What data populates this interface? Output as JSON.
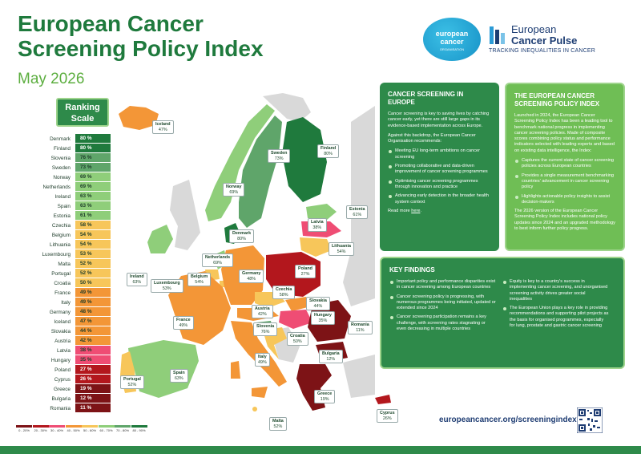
{
  "header": {
    "title": "European Cancer Screening Policy Index",
    "date": "May 2026"
  },
  "logos": {
    "ec_line1": "european",
    "ec_line2": "cancer",
    "ec_line3": "ORGANISATION",
    "pulse_line1": "European",
    "pulse_line2": "Cancer Pulse",
    "pulse_tagline": "TRACKING INEQUALITIES IN CANCER"
  },
  "scale": {
    "badge": "Ranking Scale",
    "rows": [
      {
        "name": "Denmark",
        "value": "80 %",
        "color": "#1f7a3d"
      },
      {
        "name": "Finland",
        "value": "80 %",
        "color": "#1f7a3d"
      },
      {
        "name": "Slovenia",
        "value": "76 %",
        "color": "#5fa56a"
      },
      {
        "name": "Sweden",
        "value": "73 %",
        "color": "#5fa56a"
      },
      {
        "name": "Norway",
        "value": "69 %",
        "color": "#8fce7a"
      },
      {
        "name": "Netherlands",
        "value": "69 %",
        "color": "#8fce7a"
      },
      {
        "name": "Ireland",
        "value": "63 %",
        "color": "#8fce7a"
      },
      {
        "name": "Spain",
        "value": "63 %",
        "color": "#8fce7a"
      },
      {
        "name": "Estonia",
        "value": "61 %",
        "color": "#8fce7a"
      },
      {
        "name": "Czechia",
        "value": "58 %",
        "color": "#f7c65a"
      },
      {
        "name": "Belgium",
        "value": "54 %",
        "color": "#f7c65a"
      },
      {
        "name": "Lithuania",
        "value": "54 %",
        "color": "#f7c65a"
      },
      {
        "name": "Luxembourg",
        "value": "53 %",
        "color": "#f7c65a"
      },
      {
        "name": "Malta",
        "value": "52 %",
        "color": "#f7c65a"
      },
      {
        "name": "Portugal",
        "value": "52 %",
        "color": "#f7c65a"
      },
      {
        "name": "Croatia",
        "value": "50 %",
        "color": "#f7c65a"
      },
      {
        "name": "France",
        "value": "49 %",
        "color": "#f39637"
      },
      {
        "name": "Italy",
        "value": "49 %",
        "color": "#f39637"
      },
      {
        "name": "Germany",
        "value": "48 %",
        "color": "#f39637"
      },
      {
        "name": "Iceland",
        "value": "47 %",
        "color": "#f39637"
      },
      {
        "name": "Slovakia",
        "value": "44 %",
        "color": "#f39637"
      },
      {
        "name": "Austria",
        "value": "42 %",
        "color": "#f39637"
      },
      {
        "name": "Latvia",
        "value": "38 %",
        "color": "#ef4d74"
      },
      {
        "name": "Hungary",
        "value": "35 %",
        "color": "#ef4d74"
      },
      {
        "name": "Poland",
        "value": "27 %",
        "color": "#b3171d"
      },
      {
        "name": "Cyprus",
        "value": "26 %",
        "color": "#b3171d"
      },
      {
        "name": "Greece",
        "value": "19 %",
        "color": "#7d1316"
      },
      {
        "name": "Bulgaria",
        "value": "12 %",
        "color": "#7d1316"
      },
      {
        "name": "Romania",
        "value": "11 %",
        "color": "#7d1316"
      }
    ],
    "legend": [
      {
        "label": "0 - 20%",
        "color": "#7d1316"
      },
      {
        "label": "20 - 30%",
        "color": "#b3171d"
      },
      {
        "label": "30 - 40%",
        "color": "#ef4d74"
      },
      {
        "label": "40 - 50%",
        "color": "#f39637"
      },
      {
        "label": "50 - 60%",
        "color": "#f7c65a"
      },
      {
        "label": "60 - 70%",
        "color": "#8fce7a"
      },
      {
        "label": "70 - 80%",
        "color": "#5fa56a"
      },
      {
        "label": "80 - 90%",
        "color": "#1f7a3d"
      }
    ]
  },
  "map_labels": [
    {
      "name": "Iceland",
      "value": "47%"
    },
    {
      "name": "Norway",
      "value": "69%"
    },
    {
      "name": "Sweden",
      "value": "73%"
    },
    {
      "name": "Finland",
      "value": "80%"
    },
    {
      "name": "Estonia",
      "value": "61%"
    },
    {
      "name": "Latvia",
      "value": "38%"
    },
    {
      "name": "Lithuania",
      "value": "54%"
    },
    {
      "name": "Denmark",
      "value": "80%"
    },
    {
      "name": "Ireland",
      "value": "63%"
    },
    {
      "name": "Netherlands",
      "value": "69%"
    },
    {
      "name": "Belgium",
      "value": "54%"
    },
    {
      "name": "Luxembourg",
      "value": "53%"
    },
    {
      "name": "Germany",
      "value": "48%"
    },
    {
      "name": "Poland",
      "value": "27%"
    },
    {
      "name": "Czechia",
      "value": "58%"
    },
    {
      "name": "Slovakia",
      "value": "44%"
    },
    {
      "name": "Austria",
      "value": "42%"
    },
    {
      "name": "Hungary",
      "value": "35%"
    },
    {
      "name": "Romania",
      "value": "11%"
    },
    {
      "name": "France",
      "value": "49%"
    },
    {
      "name": "Slovenia",
      "value": "76%"
    },
    {
      "name": "Croatia",
      "value": "50%"
    },
    {
      "name": "Bulgaria",
      "value": "12%"
    },
    {
      "name": "Italy",
      "value": "49%"
    },
    {
      "name": "Portugal",
      "value": "52%"
    },
    {
      "name": "Spain",
      "value": "63%"
    },
    {
      "name": "Greece",
      "value": "19%"
    },
    {
      "name": "Malta",
      "value": "52%"
    },
    {
      "name": "Cyprus",
      "value": "26%"
    }
  ],
  "screening_panel": {
    "title": "CANCER SCREENING IN EUROPE",
    "intro": "Cancer screening is key to saving lives by catching cancer early, yet there are still large gaps in its evidence-based implementation across Europe.",
    "lead": "Against this backdrop, the European Cancer Organisation recommends:",
    "bullets": [
      "Meeting EU long-term ambitions on cancer screening",
      "Promoting collaborative and data-driven improvement of cancer screening programmes",
      "Optimising cancer screening programmes through innovation and practice",
      "Advancing early detection in the broader health system context"
    ],
    "read_more_prefix": "Read more ",
    "read_more_link": "here",
    "read_more_suffix": "."
  },
  "index_panel": {
    "title": "THE EUROPEAN CANCER SCREENING POLICY INDEX",
    "intro": "Launched in 2024, the European Cancer Screening Policy Index has been a leading tool to benchmark national progress in implementing cancer screening policies. Made of composite scores combining policy status and performance indicators selected with leading experts and based on existing data intelligence, the Index:",
    "bullets": [
      "Captures the current state of cancer screening policies across European countries",
      "Provides a single measurement benchmarking countries' advancement in cancer screening policy",
      "Highlights actionable policy insights to assist decision-makers"
    ],
    "outro": "The 2026 version of the European Cancer Screening Policy Index includes national policy updates since 2024 and an upgraded methodology to best inform further policy progress."
  },
  "findings_panel": {
    "title": "KEY FINDINGS",
    "left": [
      "Important policy and performance disparities exist in cancer screening among European countries",
      "Cancer screening policy is progressing, with numerous programmes being initiated, updated or extended since 2024",
      "Cancer screening participation remains a key challenge, with screening rates stagnating or even decreasing in multiple countries"
    ],
    "right": [
      "Equity is key to a country's success in implementing cancer screening, and unorganised screening activity drives greater social inequalities",
      "The European Union plays a key role in providing recommendations and supporting pilot projects as the basis for organised programmes, especially for lung, prostate and gastric cancer screening"
    ]
  },
  "footer": {
    "url": "europeancancer.org/screeningindex"
  },
  "icons": [
    "pulse-logo-icon",
    "qr-code-icon"
  ]
}
